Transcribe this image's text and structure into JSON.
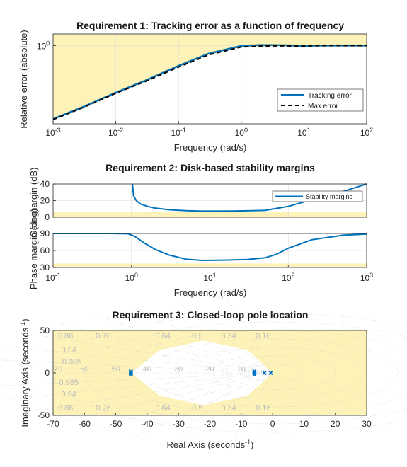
{
  "colors": {
    "bad_region": "#fdf2b8",
    "tracking": "#0072bd",
    "max_error": "#000000",
    "max_error_green": "#5a8a5a",
    "margins": "#0072bd",
    "poles": "#0072bd",
    "grid": "#dcdcdc"
  },
  "chart_data": [
    {
      "type": "line",
      "title": "Requirement 1: Tracking error as a function of frequency",
      "xlabel": "Frequency (rad/s)",
      "ylabel": "Relative error (absolute)",
      "xscale": "log",
      "yscale": "log",
      "xlim": [
        0.001,
        100
      ],
      "ylim": [
        0.0417,
        1.6
      ],
      "x_ticks": [
        {
          "base": "10",
          "exp": "-3"
        },
        {
          "base": "10",
          "exp": "-2"
        },
        {
          "base": "10",
          "exp": "-1"
        },
        {
          "base": "10",
          "exp": "0"
        },
        {
          "base": "10",
          "exp": "1"
        },
        {
          "base": "10",
          "exp": "2"
        }
      ],
      "y_ticks": [
        {
          "base": "10",
          "exp": "0"
        }
      ],
      "legend_position": "bottom-right",
      "series": [
        {
          "name": "Tracking error",
          "x": [
            0.001,
            0.003,
            0.01,
            0.03,
            0.1,
            0.3,
            1,
            2,
            3,
            5,
            10,
            15,
            30,
            100
          ],
          "y": [
            0.0508,
            0.0827,
            0.148,
            0.243,
            0.439,
            0.721,
            0.985,
            1.02,
            1.02,
            1.01,
            0.985,
            0.995,
            1.0,
            1.0
          ]
        },
        {
          "name": "Max error",
          "x": [
            0.001,
            0.003,
            0.01,
            0.03,
            0.1,
            0.3,
            1,
            2,
            3,
            5,
            10,
            15,
            30,
            100
          ],
          "y": [
            0.0496,
            0.0807,
            0.144,
            0.234,
            0.418,
            0.683,
            0.942,
            0.975,
            0.985,
            0.985,
            0.98,
            0.995,
            1.0,
            1.0
          ]
        }
      ]
    },
    {
      "type": "line",
      "title": "Requirement 2: Disk-based stability margins",
      "xlabel": "Frequency (rad/s)",
      "xscale": "log",
      "xlim": [
        0.1,
        1000
      ],
      "x_ticks": [
        {
          "base": "10",
          "exp": "-1"
        },
        {
          "base": "10",
          "exp": "0"
        },
        {
          "base": "10",
          "exp": "1"
        },
        {
          "base": "10",
          "exp": "2"
        },
        {
          "base": "10",
          "exp": "3"
        }
      ],
      "legend_position": "top-right",
      "subplots": [
        {
          "ylabel": "Gain margin (dB)",
          "ylim": [
            0,
            40
          ],
          "y_ticks": [
            "0",
            "20",
            "40"
          ],
          "bound": 6,
          "series": [
            {
              "name": "Stability margins",
              "x": [
                1.03,
                1.06,
                1.15,
                1.3,
                1.6,
                2,
                3,
                5,
                8,
                20,
                50,
                100,
                200,
                500,
                1000
              ],
              "y": [
                40,
                26,
                20,
                16,
                13,
                11,
                9,
                7.8,
                7.3,
                7.4,
                8.2,
                13,
                21,
                31,
                41
              ]
            }
          ]
        },
        {
          "ylabel": "Phase margin (deg)",
          "ylim": [
            30,
            90
          ],
          "y_ticks": [
            "30",
            "60",
            "90"
          ],
          "bound": 37,
          "series": [
            {
              "name": "Stability margins",
              "x": [
                0.1,
                0.5,
                0.9,
                1.1,
                1.5,
                2,
                3,
                5,
                8,
                15,
                30,
                50,
                70,
                100,
                200,
                500,
                1000
              ],
              "y": [
                90,
                90,
                89.5,
                85,
                72,
                62,
                52,
                44.5,
                42.5,
                43,
                44,
                47,
                53,
                64,
                79,
                87,
                89
              ]
            }
          ]
        }
      ]
    },
    {
      "type": "scatter",
      "title": "Requirement 3: Closed-loop pole location",
      "xlabel": "Real Axis (seconds",
      "ylabel": "Imaginary Axis (seconds",
      "label_exp": "-1",
      "label_close": ")",
      "xlim": [
        -70,
        30
      ],
      "ylim": [
        -50,
        50
      ],
      "x_ticks": [
        "-70",
        "-60",
        "-50",
        "-40",
        "-30",
        "-20",
        "-10",
        "0",
        "10",
        "20",
        "30"
      ],
      "y_ticks": [
        "-50",
        "0",
        "50"
      ],
      "damping_labels": [
        "0.86",
        "0.76",
        "0.64",
        "0.5",
        "0.34",
        "0.16",
        "0.94",
        "0.985"
      ],
      "wn_labels": [
        "70",
        "60",
        "50",
        "40",
        "30",
        "20",
        "10"
      ],
      "allowed_region": [
        [
          -45,
          0
        ],
        [
          -36,
          27
        ],
        [
          -22,
          38
        ],
        [
          -8,
          27
        ],
        [
          0,
          0
        ],
        [
          -8,
          -27
        ],
        [
          -22,
          -38
        ],
        [
          -36,
          -27
        ]
      ],
      "poles": [
        {
          "x": -45.2,
          "y": 1.8
        },
        {
          "x": -45.2,
          "y": 0.6
        },
        {
          "x": -45.2,
          "y": -0.6
        },
        {
          "x": -45.2,
          "y": -1.8
        },
        {
          "x": -5.8,
          "y": 2.0
        },
        {
          "x": -5.8,
          "y": 0.6
        },
        {
          "x": -5.8,
          "y": -0.6
        },
        {
          "x": -5.8,
          "y": -2.0
        },
        {
          "x": -2.6,
          "y": 0
        },
        {
          "x": -0.6,
          "y": 0
        }
      ]
    }
  ]
}
